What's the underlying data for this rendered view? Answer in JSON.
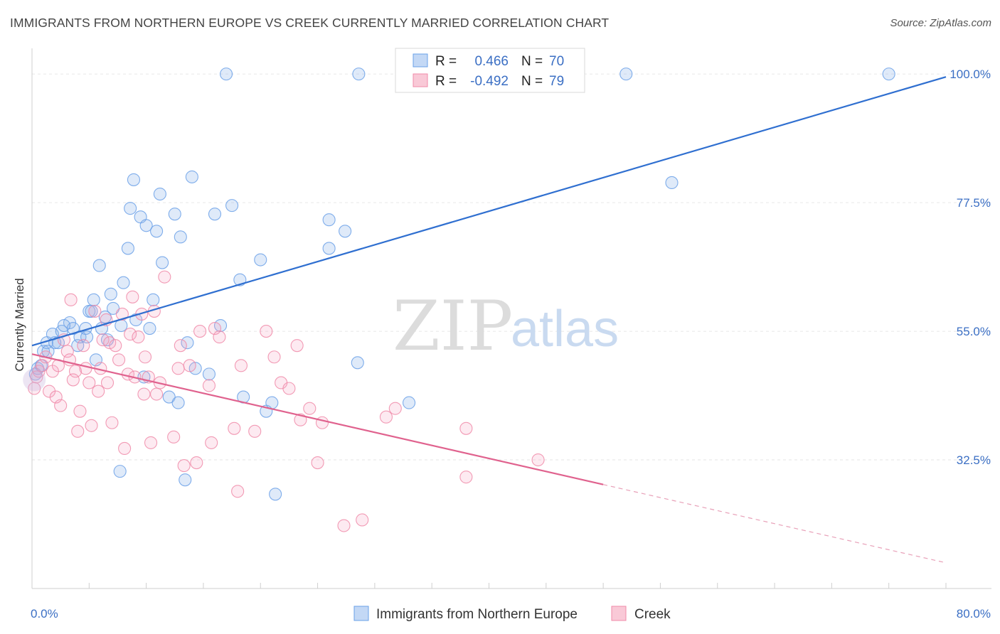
{
  "header": {
    "title": "IMMIGRANTS FROM NORTHERN EUROPE VS CREEK CURRENTLY MARRIED CORRELATION CHART",
    "source": "Source: ZipAtlas.com"
  },
  "watermark": {
    "zip": "ZIP",
    "atlas": "atlas"
  },
  "stats": {
    "r_label": "R =",
    "n_label": "N =",
    "rows": [
      {
        "r": "0.466",
        "n": "70",
        "color": "#6aa0e8"
      },
      {
        "r": "-0.492",
        "n": "79",
        "color": "#f08aa8"
      }
    ]
  },
  "legend": {
    "items": [
      {
        "label": "Immigrants from Northern Europe",
        "color": "#6aa0e8"
      },
      {
        "label": "Creek",
        "color": "#f08aa8"
      }
    ]
  },
  "chart_data": {
    "type": "scatter",
    "title": "IMMIGRANTS FROM NORTHERN EUROPE VS CREEK CURRENTLY MARRIED CORRELATION CHART",
    "xlabel": "",
    "ylabel": "Currently Married",
    "xlim": [
      0,
      80
    ],
    "ylim": [
      10,
      103
    ],
    "x_tick_labels": [
      "0.0%",
      "80.0%"
    ],
    "y_ticks": [
      {
        "value": 32.5,
        "label": "32.5%"
      },
      {
        "value": 55.0,
        "label": "55.0%"
      },
      {
        "value": 77.5,
        "label": "77.5%"
      },
      {
        "value": 100.0,
        "label": "100.0%"
      }
    ],
    "grid": true,
    "legend_position": "bottom",
    "series": [
      {
        "name": "Immigrants from Northern Europe",
        "color": "#6aa0e8",
        "trend": {
          "x": [
            0,
            80
          ],
          "y": [
            52.5,
            99.5
          ],
          "dashed_from": null
        },
        "points": [
          [
            0.3,
            47.5
          ],
          [
            0.5,
            48.5
          ],
          [
            0.8,
            49.0
          ],
          [
            1.0,
            51.5
          ],
          [
            1.3,
            53.0
          ],
          [
            1.4,
            51.5
          ],
          [
            1.8,
            54.5
          ],
          [
            2.0,
            53.0
          ],
          [
            2.3,
            53.0
          ],
          [
            2.6,
            55.0
          ],
          [
            3.3,
            56.5
          ],
          [
            3.6,
            55.5
          ],
          [
            4.0,
            52.5
          ],
          [
            4.2,
            54.0
          ],
          [
            4.7,
            55.5
          ],
          [
            5.0,
            58.5
          ],
          [
            5.2,
            58.5
          ],
          [
            5.4,
            60.5
          ],
          [
            5.6,
            50.0
          ],
          [
            5.9,
            66.5
          ],
          [
            6.1,
            55.5
          ],
          [
            6.4,
            57.5
          ],
          [
            6.6,
            53.5
          ],
          [
            6.9,
            61.5
          ],
          [
            7.1,
            59.0
          ],
          [
            7.8,
            56.0
          ],
          [
            8.0,
            63.5
          ],
          [
            8.4,
            69.5
          ],
          [
            8.6,
            76.5
          ],
          [
            8.9,
            81.5
          ],
          [
            9.1,
            57.0
          ],
          [
            9.5,
            75.0
          ],
          [
            9.8,
            47.0
          ],
          [
            10.0,
            73.5
          ],
          [
            10.3,
            55.5
          ],
          [
            10.6,
            60.5
          ],
          [
            10.9,
            72.5
          ],
          [
            11.2,
            79.0
          ],
          [
            11.4,
            67.0
          ],
          [
            12.0,
            43.5
          ],
          [
            12.5,
            75.5
          ],
          [
            12.8,
            42.5
          ],
          [
            13.0,
            71.5
          ],
          [
            13.4,
            29.0
          ],
          [
            13.6,
            53.0
          ],
          [
            14.0,
            82.0
          ],
          [
            14.3,
            48.5
          ],
          [
            15.5,
            47.5
          ],
          [
            16.0,
            75.5
          ],
          [
            16.5,
            56.0
          ],
          [
            17.5,
            77.0
          ],
          [
            18.2,
            64.0
          ],
          [
            18.5,
            43.5
          ],
          [
            20.0,
            67.5
          ],
          [
            20.5,
            41.0
          ],
          [
            21.0,
            42.5
          ],
          [
            21.3,
            26.5
          ],
          [
            17.0,
            100.0
          ],
          [
            26.0,
            69.5
          ],
          [
            26.0,
            74.5
          ],
          [
            27.4,
            72.5
          ],
          [
            28.6,
            100.0
          ],
          [
            28.5,
            49.5
          ],
          [
            33.0,
            42.5
          ],
          [
            52.0,
            100.0
          ],
          [
            56.0,
            81.0
          ],
          [
            75.0,
            100.0
          ],
          [
            7.7,
            30.5
          ],
          [
            2.8,
            56.0
          ],
          [
            4.8,
            54.0
          ]
        ]
      },
      {
        "name": "Creek",
        "color": "#f08aa8",
        "trend": {
          "x": [
            0,
            80
          ],
          "y": [
            51.0,
            14.5
          ],
          "dashed_from": 50
        },
        "points": [
          [
            0.2,
            45.0
          ],
          [
            0.4,
            47.0
          ],
          [
            0.6,
            48.0
          ],
          [
            0.9,
            49.0
          ],
          [
            1.2,
            50.5
          ],
          [
            1.5,
            44.5
          ],
          [
            1.8,
            48.0
          ],
          [
            2.1,
            43.5
          ],
          [
            2.3,
            49.0
          ],
          [
            2.5,
            42.0
          ],
          [
            2.8,
            53.5
          ],
          [
            3.1,
            51.5
          ],
          [
            3.3,
            50.0
          ],
          [
            3.4,
            60.5
          ],
          [
            3.8,
            48.0
          ],
          [
            4.0,
            37.5
          ],
          [
            4.2,
            41.0
          ],
          [
            4.5,
            52.5
          ],
          [
            4.7,
            48.5
          ],
          [
            5.0,
            46.0
          ],
          [
            5.2,
            38.5
          ],
          [
            5.5,
            58.5
          ],
          [
            5.8,
            44.5
          ],
          [
            6.0,
            48.5
          ],
          [
            6.2,
            53.5
          ],
          [
            6.5,
            57.0
          ],
          [
            6.8,
            53.0
          ],
          [
            7.0,
            39.0
          ],
          [
            7.3,
            52.5
          ],
          [
            7.6,
            50.0
          ],
          [
            7.9,
            58.0
          ],
          [
            8.1,
            34.5
          ],
          [
            8.4,
            47.5
          ],
          [
            8.6,
            54.5
          ],
          [
            8.8,
            61.0
          ],
          [
            9.0,
            47.0
          ],
          [
            9.3,
            54.0
          ],
          [
            9.6,
            58.0
          ],
          [
            9.9,
            50.5
          ],
          [
            10.2,
            47.0
          ],
          [
            10.4,
            35.5
          ],
          [
            10.7,
            58.5
          ],
          [
            10.9,
            44.0
          ],
          [
            11.2,
            46.0
          ],
          [
            11.6,
            64.5
          ],
          [
            12.4,
            36.5
          ],
          [
            13.0,
            52.5
          ],
          [
            13.3,
            31.5
          ],
          [
            13.8,
            49.0
          ],
          [
            14.4,
            32.0
          ],
          [
            14.7,
            55.0
          ],
          [
            15.5,
            45.5
          ],
          [
            15.7,
            35.5
          ],
          [
            16.0,
            55.5
          ],
          [
            16.4,
            54.0
          ],
          [
            17.7,
            38.0
          ],
          [
            18.0,
            27.0
          ],
          [
            18.3,
            49.0
          ],
          [
            19.5,
            37.5
          ],
          [
            20.5,
            55.0
          ],
          [
            21.2,
            50.5
          ],
          [
            21.8,
            46.0
          ],
          [
            22.5,
            45.0
          ],
          [
            23.2,
            52.5
          ],
          [
            23.5,
            39.5
          ],
          [
            24.3,
            41.5
          ],
          [
            25.0,
            32.0
          ],
          [
            25.4,
            39.0
          ],
          [
            27.3,
            21.0
          ],
          [
            28.9,
            22.0
          ],
          [
            31.0,
            40.0
          ],
          [
            31.8,
            41.5
          ],
          [
            38.0,
            38.0
          ],
          [
            38.0,
            29.5
          ],
          [
            44.3,
            32.5
          ],
          [
            6.6,
            46.0
          ],
          [
            12.8,
            48.5
          ],
          [
            3.6,
            46.5
          ],
          [
            9.8,
            44.0
          ]
        ]
      }
    ]
  }
}
